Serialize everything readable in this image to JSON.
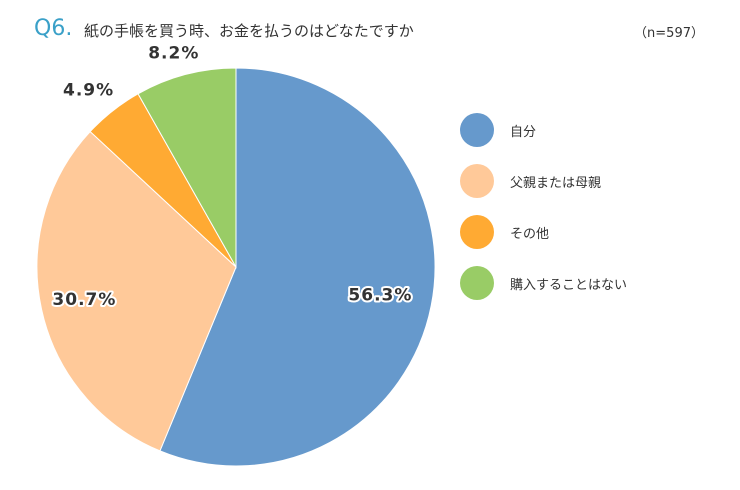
{
  "header": {
    "question_number": "Q6.",
    "question_text": "紙の手帳を買う時、お金を払うのはどなたですか",
    "sample_size": "（n=597）"
  },
  "chart_data": {
    "type": "pie",
    "categories": [
      "自分",
      "父親または母親",
      "その他",
      "購入することはない"
    ],
    "values": [
      56.3,
      30.7,
      4.9,
      8.2
    ],
    "labels": [
      "56.3%",
      "30.7%",
      "4.9%",
      "8.2%"
    ],
    "colors": [
      "#6699cc",
      "#ffc999",
      "#ffaa33",
      "#99cc66"
    ],
    "legend_position": "right",
    "start_angle": "top, clockwise"
  }
}
